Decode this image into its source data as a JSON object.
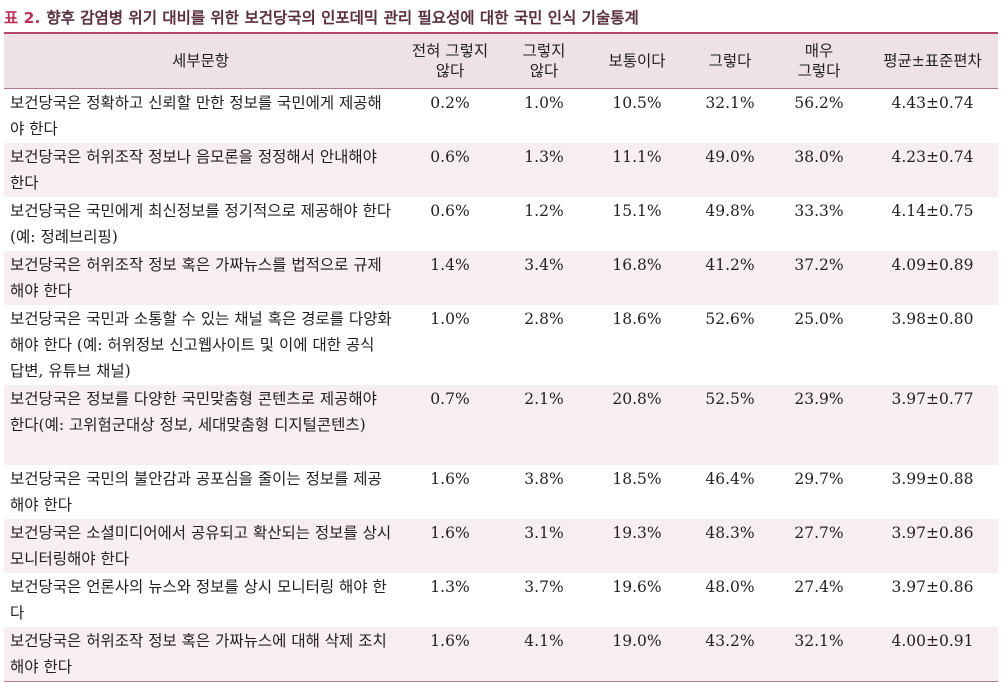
{
  "caption": {
    "number": "표 2.",
    "text": "향후 감염병 위기 대비를 위한 보건당국의 인포데믹 관리 필요성에 대한 국민 인식 기술통계"
  },
  "table": {
    "headers": [
      "세부문항",
      "전혀 그렇지\n않다",
      "그렇지\n않다",
      "보통이다",
      "그렇다",
      "매우\n그렇다",
      "평균±표준편차"
    ],
    "rows": [
      [
        "보건당국은 정확하고 신뢰할 만한 정보를 국민에게 제공해야 한다",
        "0.2%",
        "1.0%",
        "10.5%",
        "32.1%",
        "56.2%",
        "4.43±0.74"
      ],
      [
        "보건당국은 허위조작 정보나 음모론을 정정해서 안내해야 한다",
        "0.6%",
        "1.3%",
        "11.1%",
        "49.0%",
        "38.0%",
        "4.23±0.74"
      ],
      [
        "보건당국은 국민에게 최신정보를 정기적으로 제공해야 한다(예: 정례브리핑)",
        "0.6%",
        "1.2%",
        "15.1%",
        "49.8%",
        "33.3%",
        "4.14±0.75"
      ],
      [
        "보건당국은 허위조작 정보 혹은 가짜뉴스를 법적으로 규제해야 한다",
        "1.4%",
        "3.4%",
        "16.8%",
        "41.2%",
        "37.2%",
        "4.09±0.89"
      ],
      [
        "보건당국은 국민과 소통할 수 있는 채널 혹은 경로를 다양화해야 한다 (예: 허위정보 신고웹사이트 및 이에 대한 공식 답변, 유튜브 채널)",
        "1.0%",
        "2.8%",
        "18.6%",
        "52.6%",
        "25.0%",
        "3.98±0.80"
      ],
      [
        "보건당국은 정보를 다양한 국민맞춤형 콘텐츠로 제공해야 한다(예: 고위험군대상 정보, 세대맞춤형 디지털콘텐츠)",
        "0.7%",
        "2.1%",
        "20.8%",
        "52.5%",
        "23.9%",
        "3.97±0.77"
      ],
      [
        "보건당국은 국민의 불안감과 공포심을 줄이는 정보를 제공해야 한다",
        "1.6%",
        "3.8%",
        "18.5%",
        "46.4%",
        "29.7%",
        "3.99±0.88"
      ],
      [
        "보건당국은 소셜미디어에서 공유되고 확산되는 정보를 상시 모니터링해야 한다",
        "1.6%",
        "3.1%",
        "19.3%",
        "48.3%",
        "27.7%",
        "3.97±0.86"
      ],
      [
        "보건당국은 언론사의 뉴스와 정보를 상시 모니터링 해야 한다",
        "1.3%",
        "3.7%",
        "19.6%",
        "48.0%",
        "27.4%",
        "3.97±0.86"
      ],
      [
        "보건당국은 허위조작 정보 혹은 가짜뉴스에 대해 삭제 조치해야 한다",
        "1.6%",
        "4.1%",
        "19.0%",
        "43.2%",
        "32.1%",
        "4.00±0.91"
      ]
    ]
  }
}
